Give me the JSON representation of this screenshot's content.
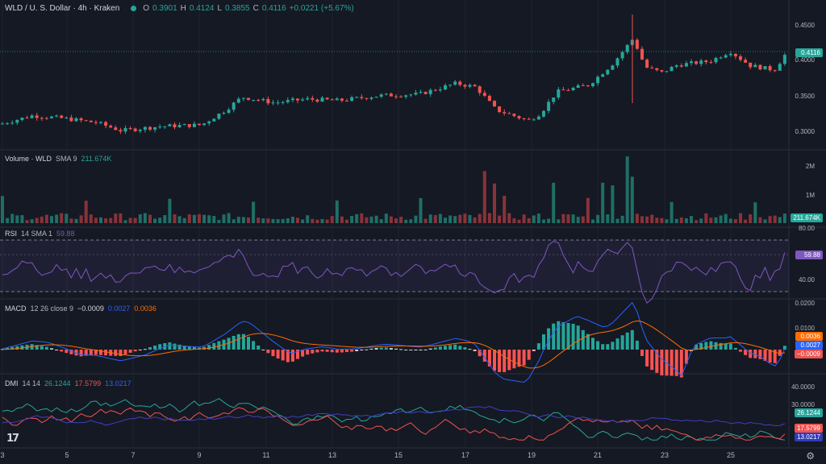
{
  "header": {
    "symbol": "WLD / U. S. Dollar · 4h · Kraken",
    "open_label": "O",
    "open": "0.3901",
    "high_label": "H",
    "high": "0.4124",
    "low_label": "L",
    "low": "0.3855",
    "close_label": "C",
    "close": "0.4116",
    "change": "+0.0221 (+5.67%)"
  },
  "price_axis": {
    "ticks": [
      "0.4500",
      "0.4000",
      "0.3500",
      "0.3000"
    ],
    "current": "0.4116"
  },
  "volume": {
    "label": "Volume · WLD",
    "ma_label": "SMA 9",
    "ma_value": "211.674K",
    "ticks": [
      "2M",
      "1M"
    ],
    "current": "211.674K"
  },
  "rsi": {
    "label": "RSI",
    "params": "14 SMA 1",
    "value": "59.88",
    "ticks": [
      "80.00",
      "40.00"
    ],
    "current": "59.88"
  },
  "macd": {
    "label": "MACD",
    "params": "12 26 close 9",
    "hist": "−0.0009",
    "macd": "0.0027",
    "signal": "0.0036",
    "ticks": [
      "0.0200",
      "0.0100"
    ],
    "tag_signal": "0.0036",
    "tag_macd": "0.0027",
    "tag_hist": "−0.0009"
  },
  "dmi": {
    "label": "DMI",
    "params": "14 14",
    "plus": "26.1244",
    "minus": "17.5799",
    "adx": "13.0217",
    "ticks": [
      "40.0000",
      "30.0000"
    ],
    "tag_plus": "26.1244",
    "tag_minus": "17.5799",
    "tag_adx": "13.0217"
  },
  "x_axis": [
    "3",
    "5",
    "7",
    "9",
    "11",
    "13",
    "15",
    "17",
    "19",
    "21",
    "23",
    "25"
  ],
  "colors": {
    "up": "#26a69a",
    "down": "#ef5350",
    "rsi": "#7e57c2",
    "macd": "#2962ff",
    "signal": "#ff6d00",
    "grid": "#1f2430"
  },
  "icons": {
    "logo": "tradingview-logo",
    "settings": "gear-icon"
  }
}
